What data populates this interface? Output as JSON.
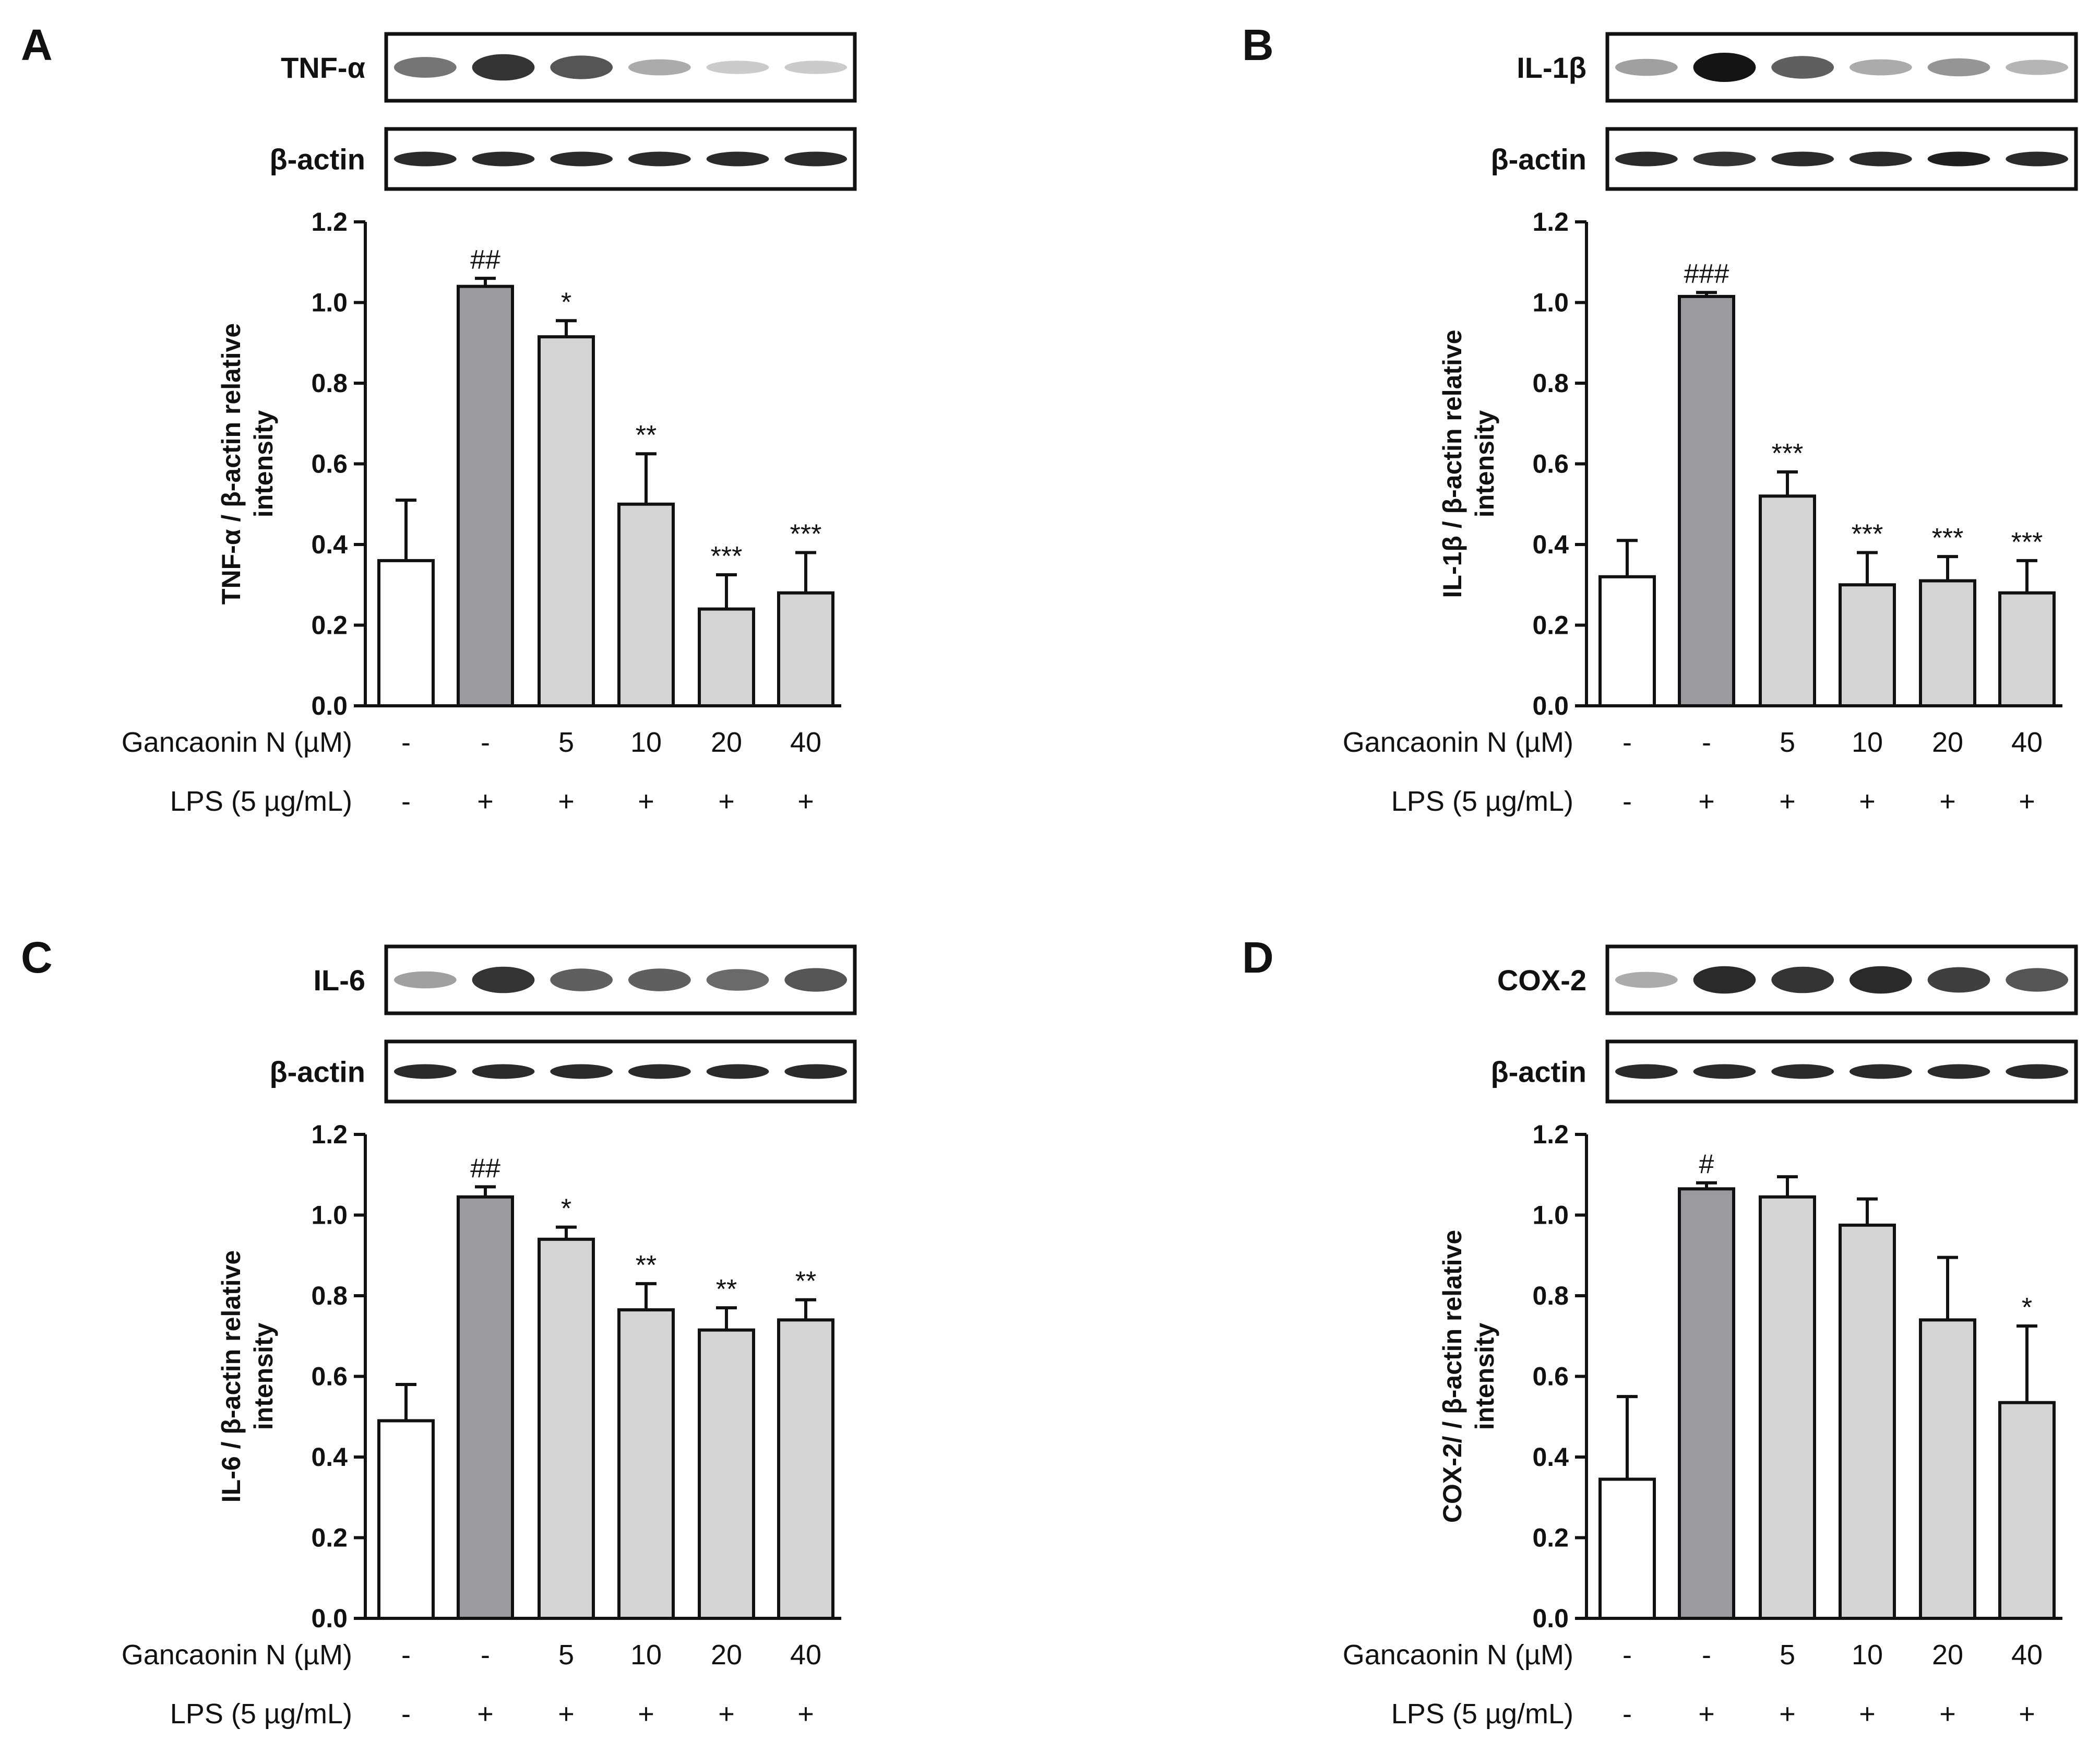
{
  "colors": {
    "control_fill": "#ffffff",
    "lps_fill": "#9b9b9f",
    "treated_fill": "#d4d4d4",
    "outline": "#111111"
  },
  "conditions": {
    "gancaonin_label": "Gancaonin N (µM)",
    "gancaonin_values": [
      "-",
      "-",
      "5",
      "10",
      "20",
      "40"
    ],
    "lps_label": "LPS (5 µg/mL)",
    "lps_values": [
      "-",
      "+",
      "+",
      "+",
      "+",
      "+"
    ]
  },
  "chart_data": [
    {
      "panel": "A",
      "type": "bar",
      "blot_labels": [
        "TNF-α",
        "β-actin"
      ],
      "blot_intensity": [
        [
          0.55,
          0.85,
          0.7,
          0.3,
          0.15,
          0.15
        ],
        [
          0.9,
          0.9,
          0.9,
          0.9,
          0.9,
          0.9
        ]
      ],
      "ylabel_lines": [
        "TNF-α / β-actin relative",
        "intensity"
      ],
      "ylim": [
        0,
        1.2
      ],
      "yticks": [
        "0.0",
        "0.2",
        "0.4",
        "0.6",
        "0.8",
        "1.0",
        "1.2"
      ],
      "values": [
        0.36,
        1.04,
        0.915,
        0.5,
        0.24,
        0.28
      ],
      "errors": [
        0.15,
        0.02,
        0.04,
        0.125,
        0.085,
        0.1
      ],
      "significance": [
        "",
        "##",
        "*",
        "**",
        "***",
        "***"
      ]
    },
    {
      "panel": "B",
      "type": "bar",
      "blot_labels": [
        "IL-1β",
        "β-actin"
      ],
      "blot_intensity": [
        [
          0.35,
          1.0,
          0.65,
          0.3,
          0.4,
          0.25
        ],
        [
          0.9,
          0.85,
          0.9,
          0.9,
          0.95,
          0.9
        ]
      ],
      "ylabel_lines": [
        "IL-1β / β-actin relative",
        "intensity"
      ],
      "ylim": [
        0,
        1.2
      ],
      "yticks": [
        "0.0",
        "0.2",
        "0.4",
        "0.6",
        "0.8",
        "1.0",
        "1.2"
      ],
      "values": [
        0.32,
        1.015,
        0.52,
        0.3,
        0.31,
        0.28
      ],
      "errors": [
        0.09,
        0.01,
        0.06,
        0.08,
        0.06,
        0.08
      ],
      "significance": [
        "",
        "###",
        "***",
        "***",
        "***",
        "***"
      ]
    },
    {
      "panel": "C",
      "type": "bar",
      "blot_labels": [
        "IL-6",
        "β-actin"
      ],
      "blot_intensity": [
        [
          0.35,
          0.85,
          0.65,
          0.65,
          0.6,
          0.7
        ],
        [
          0.9,
          0.9,
          0.9,
          0.9,
          0.9,
          0.9
        ]
      ],
      "ylabel_lines": [
        "IL-6 / β-actin relative",
        "intensity"
      ],
      "ylim": [
        0,
        1.2
      ],
      "yticks": [
        "0.0",
        "0.2",
        "0.4",
        "0.6",
        "0.8",
        "1.0",
        "1.2"
      ],
      "values": [
        0.49,
        1.045,
        0.94,
        0.765,
        0.715,
        0.74
      ],
      "errors": [
        0.09,
        0.025,
        0.03,
        0.065,
        0.055,
        0.05
      ],
      "significance": [
        "",
        "##",
        "*",
        "**",
        "**",
        "**"
      ]
    },
    {
      "panel": "D",
      "type": "bar",
      "blot_labels": [
        "COX-2",
        "β-actin"
      ],
      "blot_intensity": [
        [
          0.3,
          0.9,
          0.85,
          0.9,
          0.8,
          0.7
        ],
        [
          0.9,
          0.9,
          0.9,
          0.9,
          0.9,
          0.9
        ]
      ],
      "ylabel_lines": [
        "COX-2/ / β-actin relative",
        "intensity"
      ],
      "ylim": [
        0,
        1.2
      ],
      "yticks": [
        "0.0",
        "0.2",
        "0.4",
        "0.6",
        "0.8",
        "1.0",
        "1.2"
      ],
      "values": [
        0.345,
        1.065,
        1.045,
        0.975,
        0.74,
        0.535
      ],
      "errors": [
        0.205,
        0.015,
        0.05,
        0.065,
        0.155,
        0.19
      ],
      "significance": [
        "",
        "#",
        "",
        "",
        "",
        "*"
      ]
    }
  ]
}
